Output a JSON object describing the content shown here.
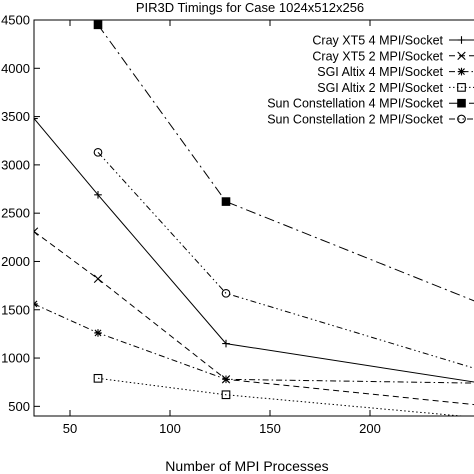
{
  "chart_data": {
    "type": "line",
    "title": "PIR3D Timings for Case 1024x512x256",
    "xlabel": "Number of MPI Processes",
    "ylabel": "",
    "xlim": [
      32,
      256
    ],
    "ylim": [
      400,
      4500
    ],
    "xticks": [
      50,
      100,
      150,
      200
    ],
    "yticks": [
      4500,
      4000,
      3500,
      3000,
      2500,
      2000,
      1500,
      1000,
      500
    ],
    "ytick_labels": [
      "4500",
      "4000",
      "3500",
      "3000",
      "2500",
      "2000",
      "1500",
      "1000",
      "500"
    ],
    "xtick_labels": [
      "50",
      "100",
      "150",
      "200"
    ],
    "legend_position": "top-right",
    "series": [
      {
        "name": "Cray XT5 4 MPI/Socket",
        "marker": "plus",
        "dash": "solid",
        "x": [
          32,
          64,
          128,
          256
        ],
        "y": [
          3480,
          2690,
          1150,
          740
        ]
      },
      {
        "name": "Cray XT5 2 MPI/Socket",
        "marker": "cross",
        "dash": "dash",
        "x": [
          32,
          64,
          128,
          256
        ],
        "y": [
          2310,
          1820,
          780,
          510
        ]
      },
      {
        "name": "SGI Altix 4 MPI/Socket",
        "marker": "star",
        "dash": "dashdot",
        "x": [
          32,
          64,
          128,
          256
        ],
        "y": [
          1560,
          1260,
          780,
          740
        ]
      },
      {
        "name": "SGI Altix 2 MPI/Socket",
        "marker": "open-square",
        "dash": "dot",
        "x": [
          64,
          128,
          256
        ],
        "y": [
          790,
          620,
          380
        ]
      },
      {
        "name": "Sun Constellation 4 MPI/Socket",
        "marker": "filled-square",
        "dash": "longdashdot",
        "x": [
          64,
          128,
          256
        ],
        "y": [
          4450,
          2620,
          1560
        ]
      },
      {
        "name": "Sun Constellation 2 MPI/Socket",
        "marker": "open-circle",
        "dash": "dashdotdot",
        "x": [
          64,
          128,
          256
        ],
        "y": [
          3130,
          1670,
          870
        ]
      }
    ]
  }
}
